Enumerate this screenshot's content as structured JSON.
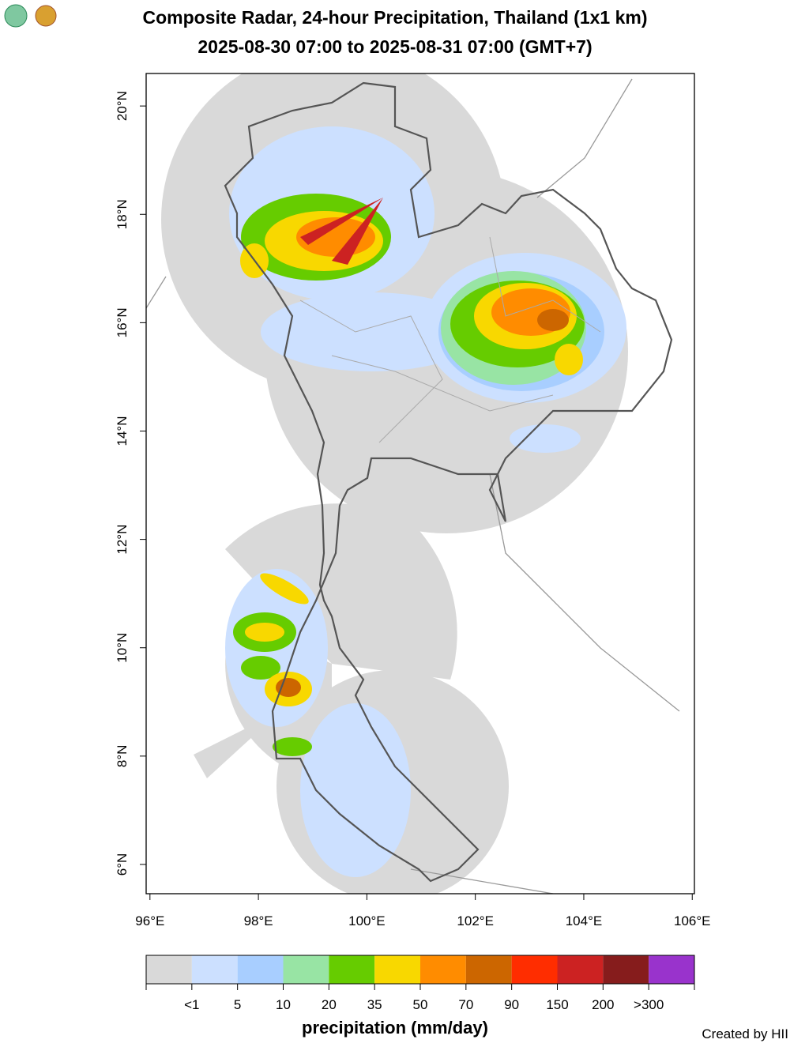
{
  "header": {
    "title": "Composite Radar, 24-hour Precipitation, Thailand (1x1 km)",
    "subtitle": "2025-08-30 07:00 to 2025-08-31 07:00 (GMT+7)"
  },
  "map": {
    "xlim": [
      95.93,
      106.04
    ],
    "ylim": [
      5.46,
      20.6
    ],
    "xticks": [
      {
        "value": 96,
        "label": "96°E"
      },
      {
        "value": 98,
        "label": "98°E"
      },
      {
        "value": 100,
        "label": "100°E"
      },
      {
        "value": 102,
        "label": "102°E"
      },
      {
        "value": 104,
        "label": "104°E"
      },
      {
        "value": 106,
        "label": "106°E"
      }
    ],
    "yticks": [
      {
        "value": 6,
        "label": "6°N"
      },
      {
        "value": 8,
        "label": "8°N"
      },
      {
        "value": 10,
        "label": "10°N"
      },
      {
        "value": 12,
        "label": "12°N"
      },
      {
        "value": 14,
        "label": "14°N"
      },
      {
        "value": 16,
        "label": "16°N"
      },
      {
        "value": 18,
        "label": "18°N"
      },
      {
        "value": 20,
        "label": "20°N"
      }
    ]
  },
  "legend": {
    "title": "precipitation (mm/day)",
    "colors": [
      "#d9d9d9",
      "#cce0ff",
      "#a8ceff",
      "#98e4a4",
      "#66cc00",
      "#f8d800",
      "#ff8c00",
      "#cc6600",
      "#ff2d00",
      "#cc2222",
      "#861c1c",
      "#9933cc"
    ],
    "labels": [
      "<1",
      "5",
      "10",
      "20",
      "35",
      "50",
      "70",
      "90",
      "150",
      "200",
      ">300"
    ]
  },
  "credit": "Created by HII"
}
